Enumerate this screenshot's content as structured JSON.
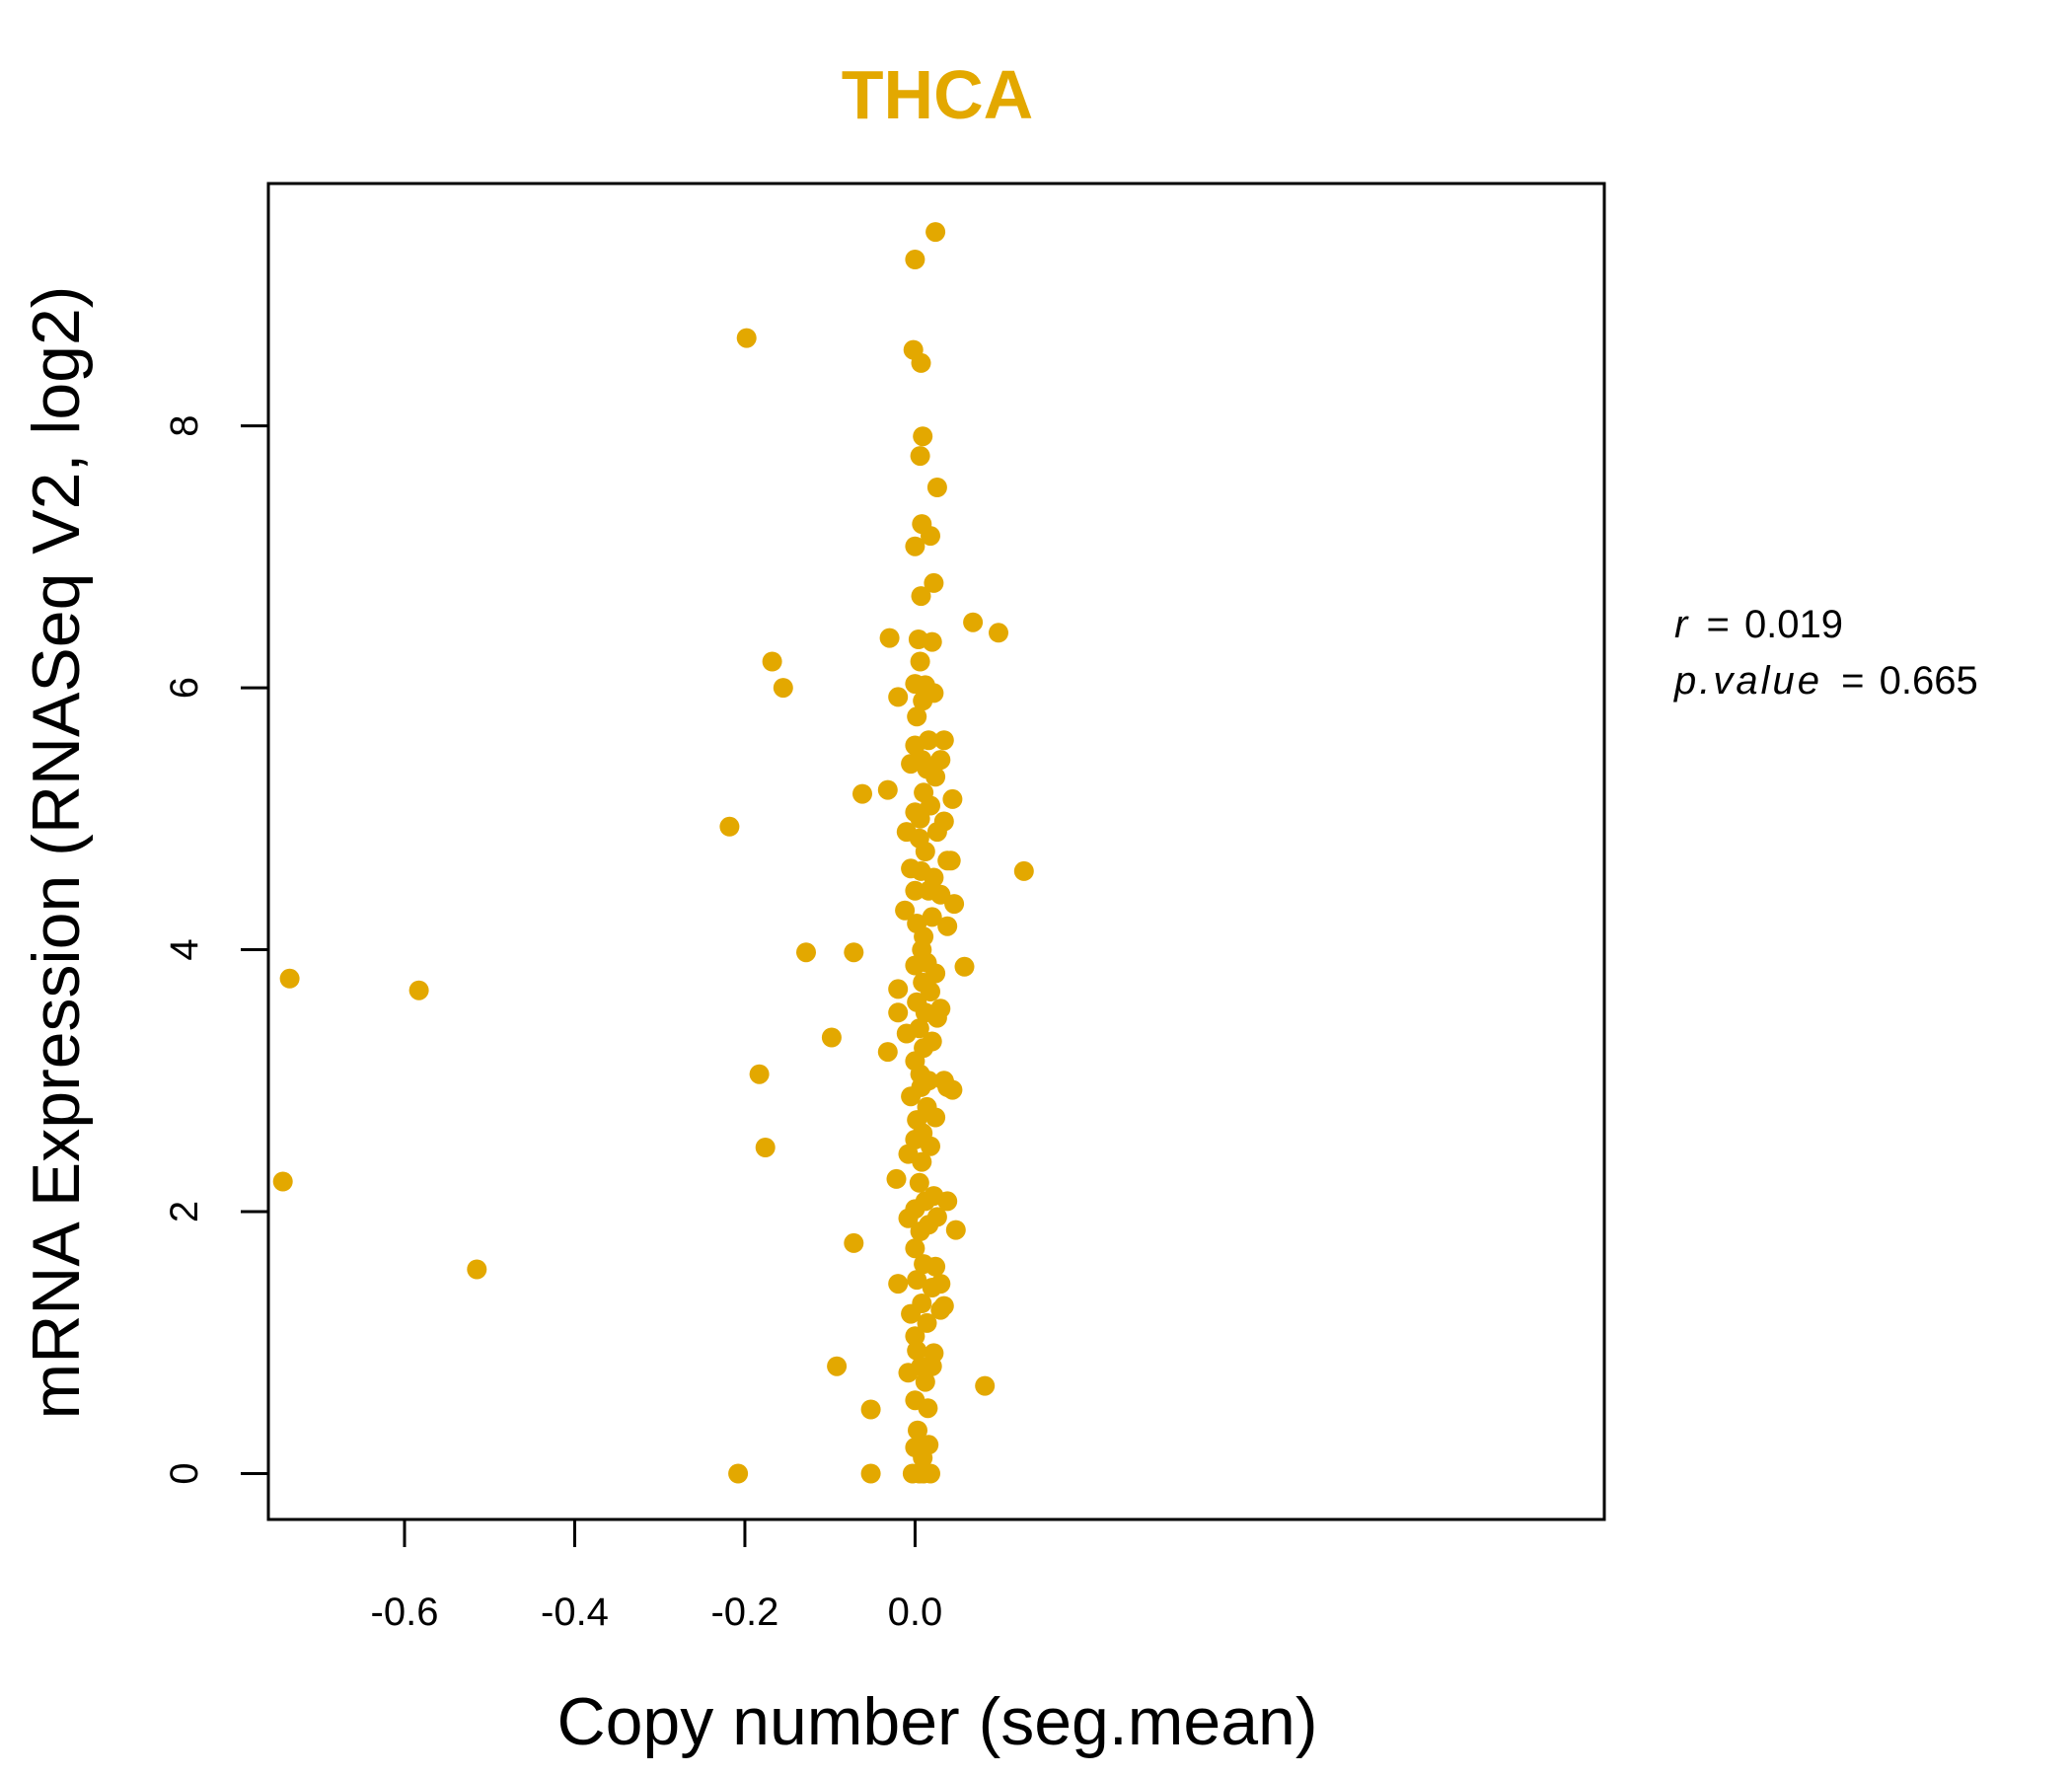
{
  "chart_data": {
    "type": "scatter",
    "title": "THCA",
    "xlabel": "Copy number (seg.mean)",
    "ylabel": "mRNA Expression (RNASeq V2, log2)",
    "xlim": [
      -0.76,
      0.81
    ],
    "ylim": [
      -0.35,
      9.85
    ],
    "x_ticks": [
      -0.6,
      -0.4,
      -0.2,
      0.0
    ],
    "x_tick_labels": [
      "-0.6",
      "-0.4",
      "-0.2",
      "0.0"
    ],
    "y_ticks": [
      0,
      2,
      4,
      6,
      8
    ],
    "y_tick_labels": [
      "0",
      "2",
      "4",
      "6",
      "8"
    ],
    "grid": false,
    "point_color": "#E3A800",
    "title_color": "#E3A800",
    "stats": {
      "r_label": "r",
      "r_value": "0.019",
      "p_label": "p.value",
      "p_value": "0.665",
      "equals": "="
    },
    "points": [
      [
        -0.735,
        3.78
      ],
      [
        -0.743,
        2.23
      ],
      [
        -0.583,
        3.69
      ],
      [
        -0.515,
        1.56
      ],
      [
        -0.198,
        8.67
      ],
      [
        -0.168,
        6.2
      ],
      [
        -0.155,
        6.0
      ],
      [
        -0.218,
        4.94
      ],
      [
        -0.128,
        3.98
      ],
      [
        -0.098,
        3.33
      ],
      [
        -0.183,
        3.05
      ],
      [
        -0.176,
        2.49
      ],
      [
        -0.208,
        0.0
      ],
      [
        -0.092,
        0.82
      ],
      [
        -0.072,
        3.98
      ],
      [
        -0.072,
        1.76
      ],
      [
        -0.062,
        5.19
      ],
      [
        -0.052,
        0.49
      ],
      [
        -0.052,
        0.0
      ],
      [
        -0.03,
        6.38
      ],
      [
        -0.032,
        5.22
      ],
      [
        -0.032,
        3.22
      ],
      [
        -0.02,
        5.93
      ],
      [
        -0.02,
        3.7
      ],
      [
        -0.02,
        3.52
      ],
      [
        -0.022,
        2.25
      ],
      [
        -0.02,
        1.45
      ],
      [
        -0.012,
        4.3
      ],
      [
        -0.01,
        4.9
      ],
      [
        -0.01,
        3.36
      ],
      [
        -0.008,
        2.44
      ],
      [
        -0.008,
        1.95
      ],
      [
        -0.008,
        0.77
      ],
      [
        -0.005,
        5.42
      ],
      [
        -0.005,
        4.62
      ],
      [
        -0.005,
        2.88
      ],
      [
        -0.005,
        1.22
      ],
      [
        -0.003,
        0.0
      ],
      [
        -0.002,
        8.58
      ],
      [
        0.0,
        9.27
      ],
      [
        0.0,
        7.08
      ],
      [
        0.0,
        6.03
      ],
      [
        0.0,
        5.56
      ],
      [
        0.0,
        5.05
      ],
      [
        0.0,
        4.45
      ],
      [
        0.0,
        3.88
      ],
      [
        0.0,
        3.15
      ],
      [
        0.0,
        2.55
      ],
      [
        0.0,
        2.02
      ],
      [
        0.0,
        1.72
      ],
      [
        0.0,
        1.05
      ],
      [
        0.0,
        0.56
      ],
      [
        0.0,
        0.2
      ],
      [
        0.002,
        5.78
      ],
      [
        0.002,
        4.2
      ],
      [
        0.002,
        3.6
      ],
      [
        0.002,
        2.7
      ],
      [
        0.002,
        1.48
      ],
      [
        0.002,
        0.94
      ],
      [
        0.003,
        0.33
      ],
      [
        0.004,
        6.37
      ],
      [
        0.005,
        4.85
      ],
      [
        0.005,
        3.4
      ],
      [
        0.005,
        2.22
      ],
      [
        0.005,
        0.0
      ],
      [
        0.006,
        7.77
      ],
      [
        0.006,
        6.2
      ],
      [
        0.006,
        5.0
      ],
      [
        0.006,
        3.05
      ],
      [
        0.006,
        1.85
      ],
      [
        0.007,
        8.48
      ],
      [
        0.007,
        6.7
      ],
      [
        0.007,
        4.6
      ],
      [
        0.007,
        2.95
      ],
      [
        0.007,
        0.82
      ],
      [
        0.008,
        7.25
      ],
      [
        0.008,
        5.45
      ],
      [
        0.008,
        4.0
      ],
      [
        0.008,
        2.38
      ],
      [
        0.008,
        1.3
      ],
      [
        0.009,
        7.92
      ],
      [
        0.009,
        5.9
      ],
      [
        0.009,
        3.75
      ],
      [
        0.009,
        2.6
      ],
      [
        0.009,
        0.12
      ],
      [
        0.01,
        5.2
      ],
      [
        0.01,
        4.1
      ],
      [
        0.01,
        3.25
      ],
      [
        0.01,
        1.6
      ],
      [
        0.01,
        0.0
      ],
      [
        0.012,
        6.02
      ],
      [
        0.012,
        4.75
      ],
      [
        0.012,
        3.52
      ],
      [
        0.012,
        2.08
      ],
      [
        0.012,
        0.7
      ],
      [
        0.014,
        5.38
      ],
      [
        0.014,
        3.9
      ],
      [
        0.014,
        2.8
      ],
      [
        0.014,
        1.15
      ],
      [
        0.015,
        0.5
      ],
      [
        0.016,
        5.6
      ],
      [
        0.016,
        4.45
      ],
      [
        0.016,
        3.0
      ],
      [
        0.016,
        1.9
      ],
      [
        0.016,
        0.22
      ],
      [
        0.018,
        7.16
      ],
      [
        0.018,
        5.1
      ],
      [
        0.018,
        3.68
      ],
      [
        0.018,
        2.5
      ],
      [
        0.018,
        0.0
      ],
      [
        0.02,
        6.35
      ],
      [
        0.02,
        4.25
      ],
      [
        0.02,
        3.3
      ],
      [
        0.02,
        1.42
      ],
      [
        0.02,
        0.82
      ],
      [
        0.022,
        6.8
      ],
      [
        0.022,
        5.96
      ],
      [
        0.022,
        4.55
      ],
      [
        0.022,
        2.12
      ],
      [
        0.022,
        0.92
      ],
      [
        0.024,
        9.48
      ],
      [
        0.024,
        5.32
      ],
      [
        0.024,
        3.82
      ],
      [
        0.024,
        2.72
      ],
      [
        0.024,
        1.58
      ],
      [
        0.026,
        7.53
      ],
      [
        0.026,
        4.9
      ],
      [
        0.026,
        3.48
      ],
      [
        0.026,
        1.96
      ],
      [
        0.03,
        5.45
      ],
      [
        0.03,
        4.42
      ],
      [
        0.03,
        3.55
      ],
      [
        0.03,
        1.45
      ],
      [
        0.03,
        1.25
      ],
      [
        0.034,
        5.6
      ],
      [
        0.034,
        4.98
      ],
      [
        0.034,
        3.0
      ],
      [
        0.034,
        1.28
      ],
      [
        0.038,
        4.68
      ],
      [
        0.038,
        4.18
      ],
      [
        0.038,
        2.95
      ],
      [
        0.038,
        2.08
      ],
      [
        0.042,
        4.68
      ],
      [
        0.044,
        5.15
      ],
      [
        0.044,
        2.93
      ],
      [
        0.046,
        4.35
      ],
      [
        0.048,
        1.86
      ],
      [
        0.058,
        3.87
      ],
      [
        0.068,
        6.5
      ],
      [
        0.082,
        0.67
      ],
      [
        0.098,
        6.42
      ],
      [
        0.128,
        4.6
      ]
    ]
  }
}
